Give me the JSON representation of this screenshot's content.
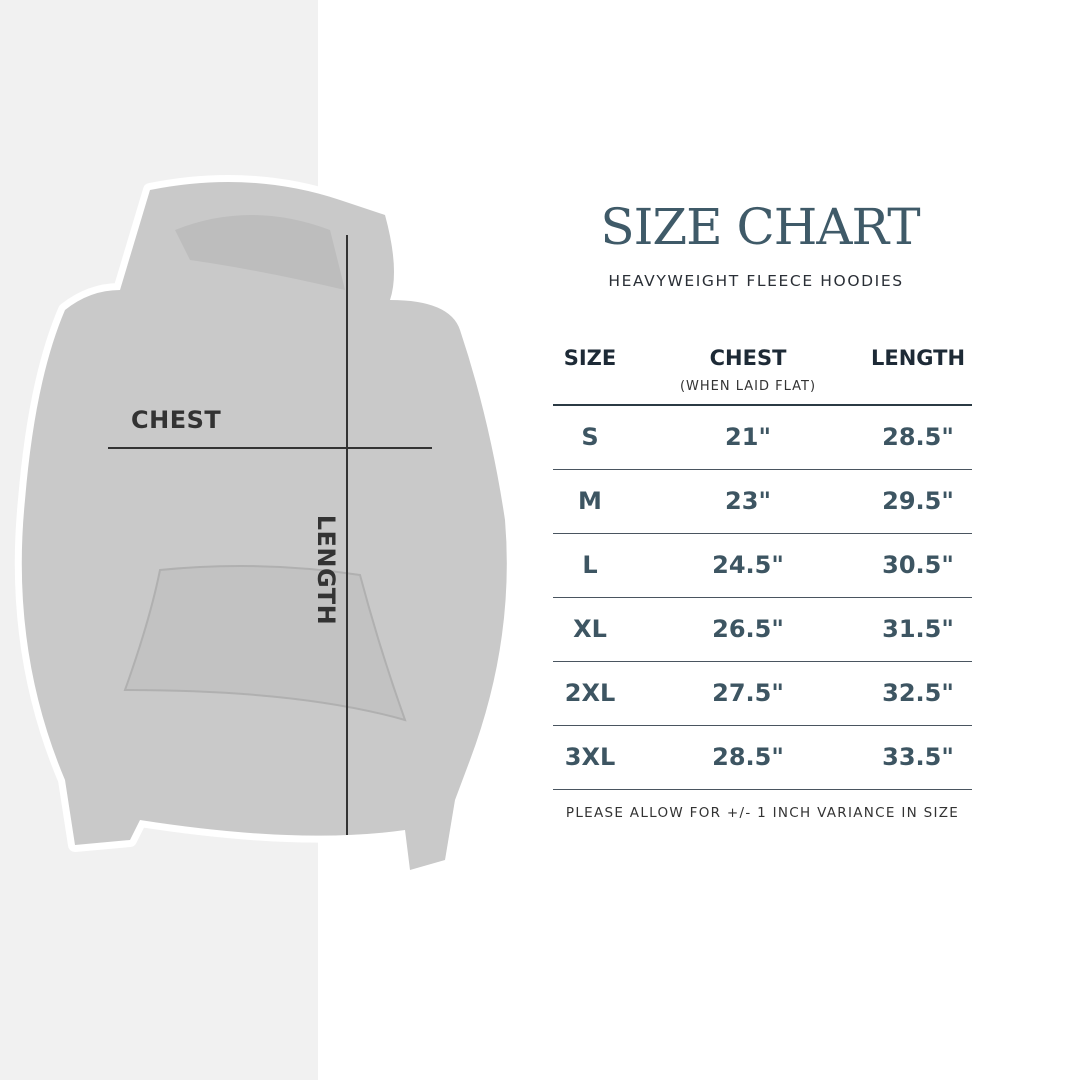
{
  "title": "SIZE CHART",
  "subtitle": "HEAVYWEIGHT FLEECE HOODIES",
  "diagram": {
    "chest_label": "CHEST",
    "length_label": "LENGTH"
  },
  "table": {
    "headers": {
      "size": "SIZE",
      "chest": "CHEST",
      "chest_note": "(WHEN LAID FLAT)",
      "length": "LENGTH"
    },
    "rows": [
      {
        "size": "S",
        "chest": "21\"",
        "length": "28.5\""
      },
      {
        "size": "M",
        "chest": "23\"",
        "length": "29.5\""
      },
      {
        "size": "L",
        "chest": "24.5\"",
        "length": "30.5\""
      },
      {
        "size": "XL",
        "chest": "26.5\"",
        "length": "31.5\""
      },
      {
        "size": "2XL",
        "chest": "27.5\"",
        "length": "32.5\""
      },
      {
        "size": "3XL",
        "chest": "28.5\"",
        "length": "33.5\""
      }
    ]
  },
  "footer": "PLEASE ALLOW FOR +/- 1 INCH VARIANCE IN SIZE",
  "colors": {
    "title": "#3f5a68",
    "values": "#3d5562",
    "panel": "#f1f1f1",
    "hoodie": "#c9c9c9"
  }
}
